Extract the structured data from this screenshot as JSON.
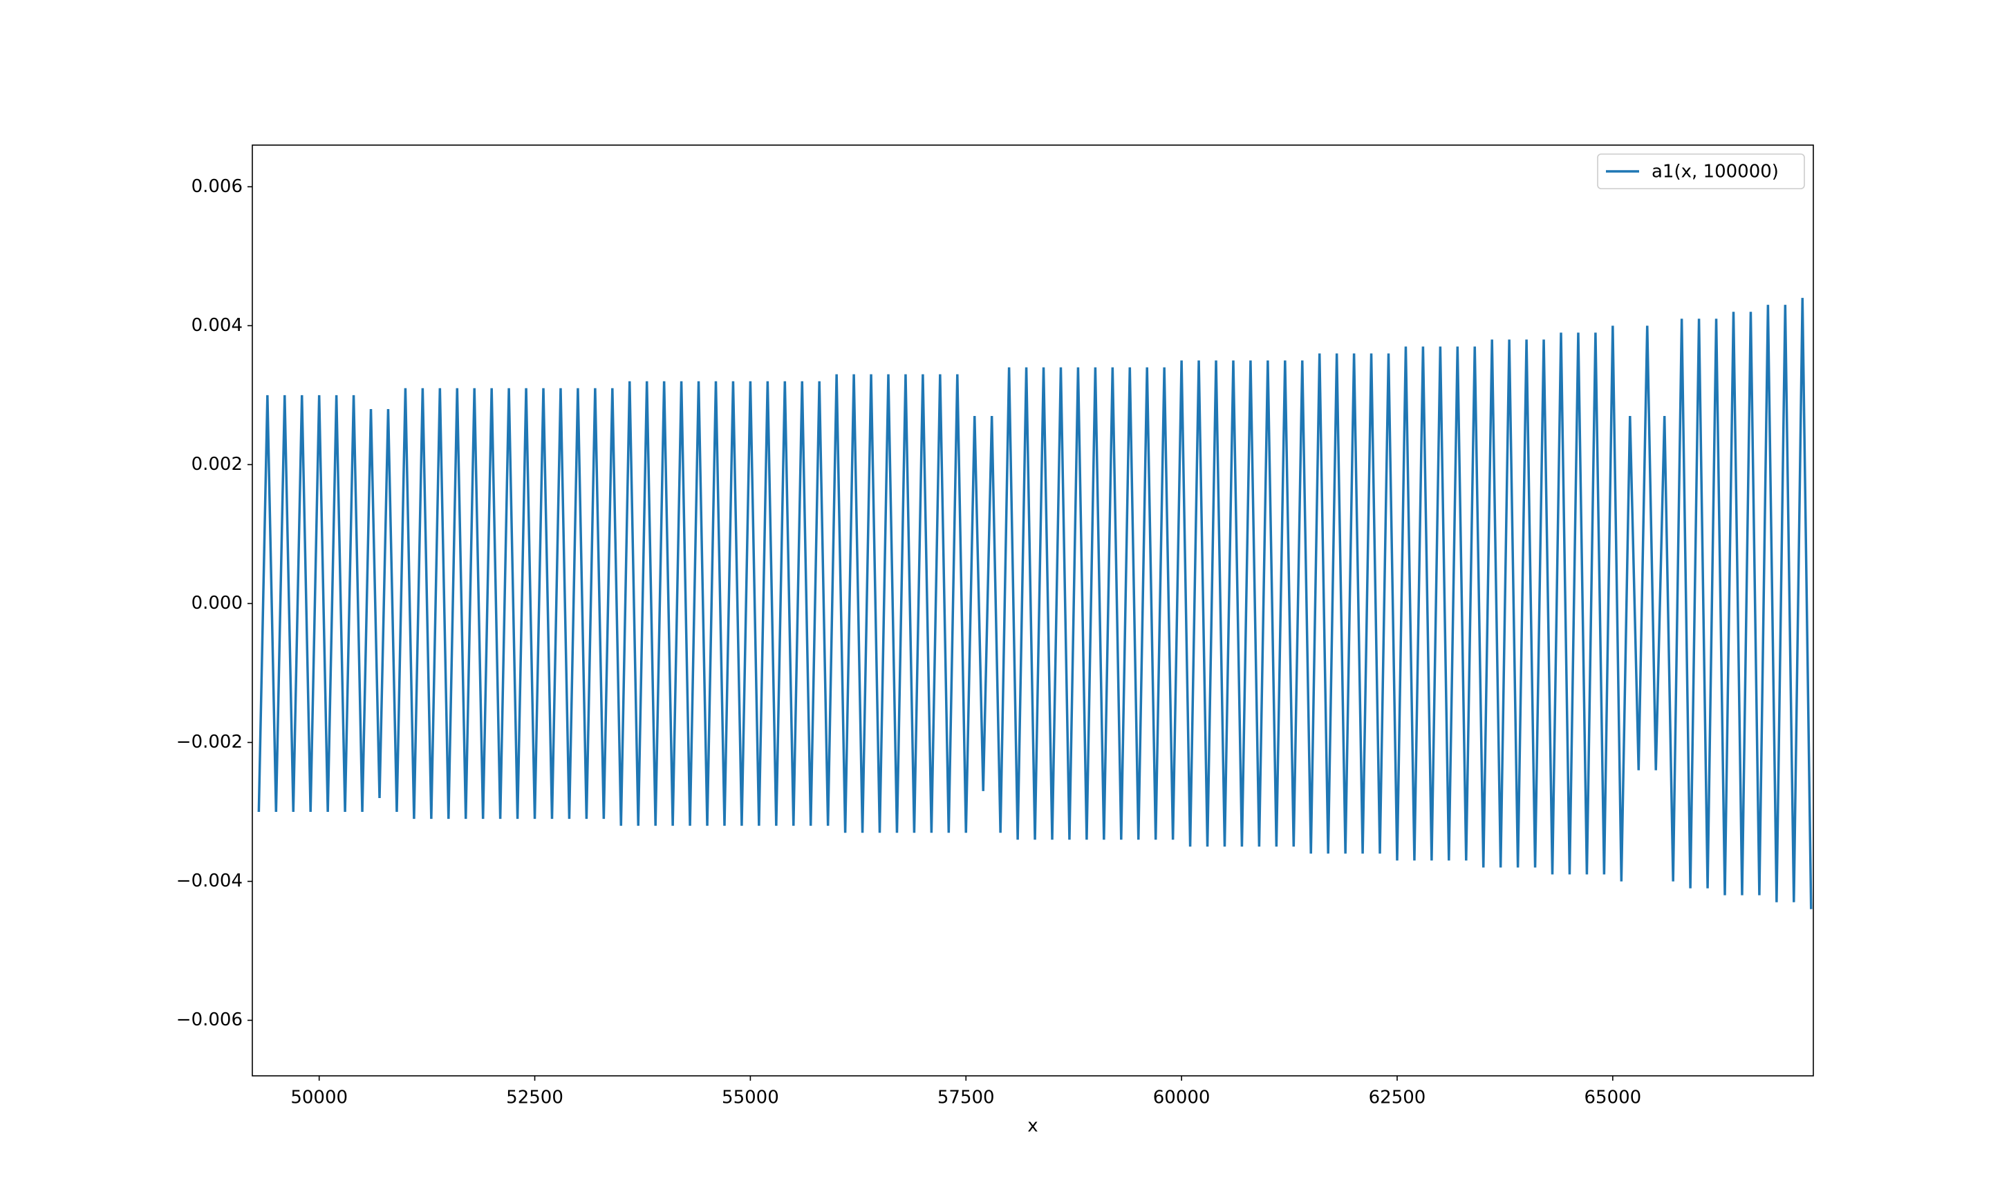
{
  "chart_data": {
    "type": "line",
    "xlabel": "x",
    "x": [
      49300,
      49400,
      49500,
      49600,
      49700,
      49800,
      49900,
      50000,
      50100,
      50200,
      50300,
      50400,
      50500,
      50600,
      50700,
      50800,
      50900,
      51000,
      51100,
      51200,
      51300,
      51400,
      51500,
      51600,
      51700,
      51800,
      51900,
      52000,
      52100,
      52200,
      52300,
      52400,
      52500,
      52600,
      52700,
      52800,
      52900,
      53000,
      53100,
      53200,
      53300,
      53400,
      53500,
      53600,
      53700,
      53800,
      53900,
      54000,
      54100,
      54200,
      54300,
      54400,
      54500,
      54600,
      54700,
      54800,
      54900,
      55000,
      55100,
      55200,
      55300,
      55400,
      55500,
      55600,
      55700,
      55800,
      55900,
      56000,
      56100,
      56200,
      56300,
      56400,
      56500,
      56600,
      56700,
      56800,
      56900,
      57000,
      57100,
      57200,
      57300,
      57400,
      57500,
      57600,
      57700,
      57800,
      57900,
      58000,
      58100,
      58200,
      58300,
      58400,
      58500,
      58600,
      58700,
      58800,
      58900,
      59000,
      59100,
      59200,
      59300,
      59400,
      59500,
      59600,
      59700,
      59800,
      59900,
      60000,
      60100,
      60200,
      60300,
      60400,
      60500,
      60600,
      60700,
      60800,
      60900,
      61000,
      61100,
      61200,
      61300,
      61400,
      61500,
      61600,
      61700,
      61800,
      61900,
      62000,
      62100,
      62200,
      62300,
      62400,
      62500,
      62600,
      62700,
      62800,
      62900,
      63000,
      63100,
      63200,
      63300,
      63400,
      63500,
      63600,
      63700,
      63800,
      63900,
      64000,
      64100,
      64200,
      64300,
      64400,
      64500,
      64600,
      64700,
      64800,
      64900,
      65000,
      65100,
      65200,
      65300,
      65400,
      65500,
      65600,
      65700,
      65800,
      65900,
      66000,
      66100,
      66200,
      66300,
      66400,
      66500,
      66600,
      66700,
      66800,
      66900,
      67000,
      67100,
      67200,
      67300
    ],
    "series": [
      {
        "name": "a1(x, 100000)",
        "color": "#1f77b4",
        "values": [
          -0.003,
          0.003,
          -0.003,
          0.003,
          -0.003,
          0.003,
          -0.003,
          0.003,
          -0.003,
          0.003,
          -0.003,
          0.003,
          -0.003,
          0.0028,
          -0.0028,
          0.0028,
          -0.003,
          0.0031,
          -0.0031,
          0.0031,
          -0.0031,
          0.0031,
          -0.0031,
          0.0031,
          -0.0031,
          0.0031,
          -0.0031,
          0.0031,
          -0.0031,
          0.0031,
          -0.0031,
          0.0031,
          -0.0031,
          0.0031,
          -0.0031,
          0.0031,
          -0.0031,
          0.0031,
          -0.0031,
          0.0031,
          -0.0031,
          0.0031,
          -0.0032,
          0.0032,
          -0.0032,
          0.0032,
          -0.0032,
          0.0032,
          -0.0032,
          0.0032,
          -0.0032,
          0.0032,
          -0.0032,
          0.0032,
          -0.0032,
          0.0032,
          -0.0032,
          0.0032,
          -0.0032,
          0.0032,
          -0.0032,
          0.0032,
          -0.0032,
          0.0032,
          -0.0032,
          0.0032,
          -0.0032,
          0.0033,
          -0.0033,
          0.0033,
          -0.0033,
          0.0033,
          -0.0033,
          0.0033,
          -0.0033,
          0.0033,
          -0.0033,
          0.0033,
          -0.0033,
          0.0033,
          -0.0033,
          0.0033,
          -0.0033,
          0.0027,
          -0.0027,
          0.0027,
          -0.0033,
          0.0034,
          -0.0034,
          0.0034,
          -0.0034,
          0.0034,
          -0.0034,
          0.0034,
          -0.0034,
          0.0034,
          -0.0034,
          0.0034,
          -0.0034,
          0.0034,
          -0.0034,
          0.0034,
          -0.0034,
          0.0034,
          -0.0034,
          0.0034,
          -0.0034,
          0.0035,
          -0.0035,
          0.0035,
          -0.0035,
          0.0035,
          -0.0035,
          0.0035,
          -0.0035,
          0.0035,
          -0.0035,
          0.0035,
          -0.0035,
          0.0035,
          -0.0035,
          0.0035,
          -0.0036,
          0.0036,
          -0.0036,
          0.0036,
          -0.0036,
          0.0036,
          -0.0036,
          0.0036,
          -0.0036,
          0.0036,
          -0.0037,
          0.0037,
          -0.0037,
          0.0037,
          -0.0037,
          0.0037,
          -0.0037,
          0.0037,
          -0.0037,
          0.0037,
          -0.0038,
          0.0038,
          -0.0038,
          0.0038,
          -0.0038,
          0.0038,
          -0.0038,
          0.0038,
          -0.0039,
          0.0039,
          -0.0039,
          0.0039,
          -0.0039,
          0.0039,
          -0.0039,
          0.004,
          -0.004,
          0.0027,
          -0.0024,
          0.004,
          -0.0024,
          0.0027,
          -0.004,
          0.0041,
          -0.0041,
          0.0041,
          -0.0041,
          0.0041,
          -0.0042,
          0.0042,
          -0.0042,
          0.0042,
          -0.0042,
          0.0043,
          -0.0043,
          0.0043,
          -0.0043,
          0.0044,
          -0.0044
        ]
      }
    ],
    "xlim": [
      49225,
      67326
    ],
    "xticks": [
      50000,
      52500,
      55000,
      57500,
      60000,
      62500,
      65000
    ],
    "ylim": [
      -0.0068,
      0.0066
    ],
    "yticks": [
      {
        "value": -0.006,
        "label": "−0.006"
      },
      {
        "value": -0.004,
        "label": "−0.004"
      },
      {
        "value": -0.002,
        "label": "−0.002"
      },
      {
        "value": 0,
        "label": "0.000"
      },
      0.002,
      0.004,
      0.006
    ],
    "legend": "upper right"
  }
}
